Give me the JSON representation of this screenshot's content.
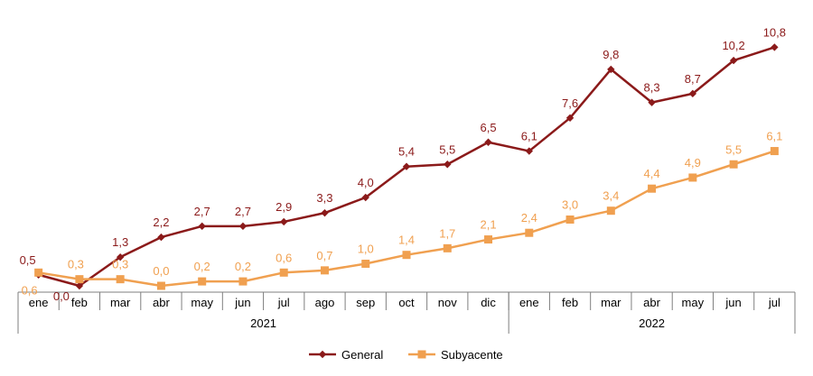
{
  "chart_data": {
    "type": "line",
    "title": "",
    "xlabel": "",
    "ylabel": "",
    "categories": [
      "ene",
      "feb",
      "mar",
      "abr",
      "may",
      "jun",
      "jul",
      "ago",
      "sep",
      "oct",
      "nov",
      "dic",
      "ene",
      "feb",
      "mar",
      "abr",
      "may",
      "jun",
      "jul"
    ],
    "year_groups": [
      {
        "label": "2021",
        "count": 12
      },
      {
        "label": "2022",
        "count": 7
      }
    ],
    "ylim": [
      0,
      11.4
    ],
    "grid": false,
    "legend_position": "bottom",
    "series": [
      {
        "name": "General",
        "color": "#8B1A1A",
        "marker": "diamond",
        "values": [
          0.5,
          0.0,
          1.3,
          2.2,
          2.7,
          2.7,
          2.9,
          3.3,
          4.0,
          5.4,
          5.5,
          6.5,
          6.1,
          7.6,
          9.8,
          8.3,
          8.7,
          10.2,
          10.8
        ],
        "labels": [
          "0,5",
          "0,0",
          "1,3",
          "2,2",
          "2,7",
          "2,7",
          "2,9",
          "3,3",
          "4,0",
          "5,4",
          "5,5",
          "6,5",
          "6,1",
          "7,6",
          "9,8",
          "8,3",
          "8,7",
          "10,2",
          "10,8"
        ]
      },
      {
        "name": "Subyacente",
        "color": "#F0A050",
        "marker": "square",
        "values": [
          0.6,
          0.3,
          0.3,
          0.0,
          0.2,
          0.2,
          0.6,
          0.7,
          1.0,
          1.4,
          1.7,
          2.1,
          2.4,
          3.0,
          3.4,
          4.4,
          4.9,
          5.5,
          6.1
        ],
        "labels": [
          "0,6",
          "0,3",
          "0,3",
          "0,0",
          "0,2",
          "0,2",
          "0,6",
          "0,7",
          "1,0",
          "1,4",
          "1,7",
          "2,1",
          "2,4",
          "3,0",
          "3,4",
          "4,4",
          "4,9",
          "5,5",
          "6,1"
        ]
      }
    ]
  }
}
